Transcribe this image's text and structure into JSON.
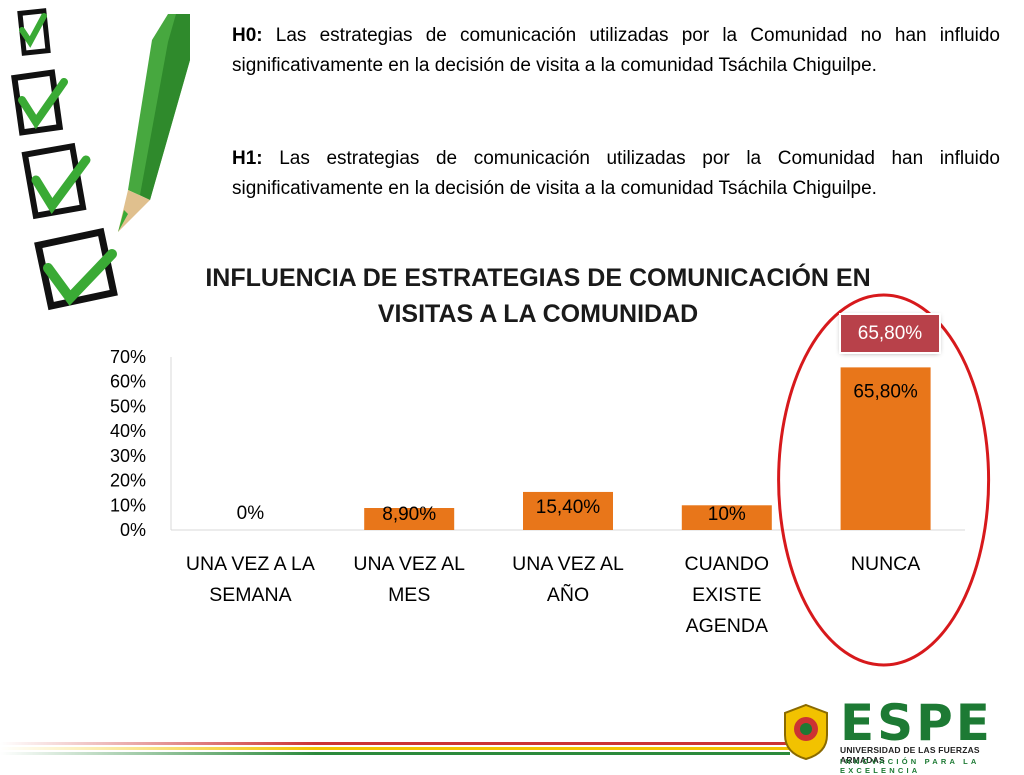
{
  "hypotheses": {
    "h0_label": "H0:",
    "h0_text": " Las estrategias de comunicación utilizadas por la Comunidad no han influido significativamente en la decisión de visita a la comunidad Tsáchila Chiguilpe.",
    "h1_label": "H1:",
    "h1_text": " Las estrategias de comunicación utilizadas por la Comunidad han influido significativamente en la decisión de visita a la comunidad Tsáchila Chiguilpe."
  },
  "chart_data": {
    "type": "bar",
    "title_line1": "INFLUENCIA DE ESTRATEGIAS DE COMUNICACIÓN EN",
    "title_line2": "VISITAS A LA COMUNIDAD",
    "categories": [
      [
        "UNA VEZ A LA",
        "SEMANA"
      ],
      [
        "UNA VEZ AL",
        "MES"
      ],
      [
        "UNA VEZ AL",
        "AÑO"
      ],
      [
        "CUANDO",
        "EXISTE",
        "AGENDA"
      ],
      [
        "NUNCA"
      ]
    ],
    "values": [
      0,
      8.9,
      15.4,
      10,
      65.8
    ],
    "data_labels": [
      "0%",
      "8,90%",
      "15,40%",
      "10%",
      "65,80%"
    ],
    "y_ticks": [
      "0%",
      "10%",
      "20%",
      "30%",
      "40%",
      "50%",
      "60%",
      "70%"
    ],
    "ylim": [
      0,
      70
    ],
    "bar_color": "#e8761a",
    "highlight": {
      "category_index": 4,
      "callout_label": "65,80%",
      "ellipse_color": "#d7191c",
      "callout_color": "#b8414a"
    },
    "grid": false,
    "legend": "none"
  },
  "footer": {
    "logo_text": "ESPE",
    "university": "UNIVERSIDAD DE LAS FUERZAS ARMADAS",
    "motto": "INNOVACIÓN PARA LA EXCELENCIA"
  }
}
